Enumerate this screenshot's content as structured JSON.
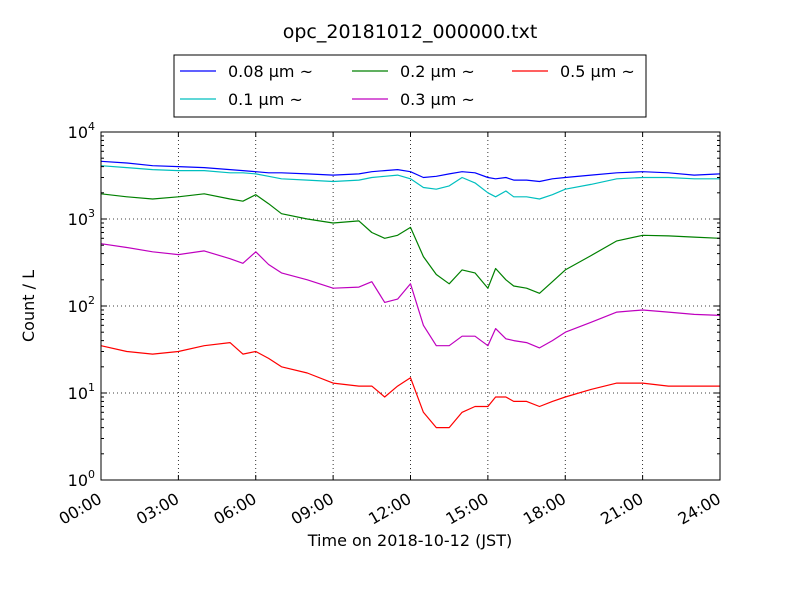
{
  "chart_data": {
    "type": "line",
    "title": "opc_20181012_000000.txt",
    "xlabel": "Time on 2018-10-12 (JST)",
    "ylabel": "Count / L",
    "yscale": "log",
    "ylim": [
      1,
      10000
    ],
    "xlim_hours": [
      0,
      24
    ],
    "grid": true,
    "legend_position": "top-center-outside",
    "x_ticks": [
      "00:00",
      "03:00",
      "06:00",
      "09:00",
      "12:00",
      "15:00",
      "18:00",
      "21:00",
      "24:00"
    ],
    "y_ticks": [
      {
        "value": 1,
        "base": "10",
        "exp": "0"
      },
      {
        "value": 10,
        "base": "10",
        "exp": "1"
      },
      {
        "value": 100,
        "base": "10",
        "exp": "2"
      },
      {
        "value": 1000,
        "base": "10",
        "exp": "3"
      },
      {
        "value": 10000,
        "base": "10",
        "exp": "4"
      }
    ],
    "hours": [
      0,
      1,
      2,
      3,
      4,
      5,
      5.5,
      6,
      6.5,
      7,
      8,
      9,
      10,
      10.5,
      11,
      11.5,
      12,
      12.5,
      13,
      13.5,
      14,
      14.5,
      15,
      15.3,
      15.7,
      16,
      16.5,
      17,
      17.5,
      18,
      19,
      20,
      21,
      22,
      23,
      24
    ],
    "series": [
      {
        "name": "0.08 μm ~",
        "color": "#0000ff",
        "values": [
          4600,
          4400,
          4100,
          4000,
          3900,
          3700,
          3600,
          3500,
          3400,
          3400,
          3300,
          3200,
          3300,
          3500,
          3600,
          3700,
          3500,
          3000,
          3100,
          3300,
          3500,
          3400,
          3000,
          2900,
          3000,
          2800,
          2800,
          2700,
          2900,
          3000,
          3200,
          3400,
          3500,
          3400,
          3200,
          3300
        ]
      },
      {
        "name": "0.1 μm ~",
        "color": "#00bfbf",
        "values": [
          4100,
          3900,
          3700,
          3600,
          3600,
          3400,
          3400,
          3300,
          3100,
          2900,
          2800,
          2700,
          2800,
          3000,
          3100,
          3200,
          2900,
          2300,
          2200,
          2400,
          3000,
          2600,
          2000,
          1800,
          2100,
          1800,
          1800,
          1700,
          1900,
          2200,
          2500,
          2900,
          3000,
          3000,
          2900,
          2900
        ]
      },
      {
        "name": "0.2 μm ~",
        "color": "#008000",
        "values": [
          1950,
          1800,
          1700,
          1800,
          1950,
          1700,
          1600,
          1900,
          1500,
          1150,
          1000,
          900,
          950,
          700,
          600,
          650,
          800,
          370,
          230,
          180,
          260,
          240,
          160,
          270,
          200,
          170,
          160,
          140,
          190,
          260,
          380,
          560,
          650,
          640,
          620,
          600
        ]
      },
      {
        "name": "0.3 μm ~",
        "color": "#bf00bf",
        "values": [
          520,
          470,
          420,
          390,
          430,
          350,
          310,
          420,
          300,
          240,
          200,
          160,
          165,
          190,
          110,
          120,
          180,
          60,
          35,
          35,
          45,
          45,
          35,
          55,
          42,
          40,
          38,
          33,
          40,
          50,
          65,
          85,
          90,
          85,
          80,
          78
        ]
      },
      {
        "name": "0.5 μm ~",
        "color": "#ff0000",
        "values": [
          35,
          30,
          28,
          30,
          35,
          38,
          28,
          30,
          25,
          20,
          17,
          13,
          12,
          12,
          9,
          12,
          15,
          6,
          4,
          4,
          6,
          7,
          7,
          9,
          9,
          8,
          8,
          7,
          8,
          9,
          11,
          13,
          13,
          12,
          12,
          12
        ]
      }
    ]
  }
}
